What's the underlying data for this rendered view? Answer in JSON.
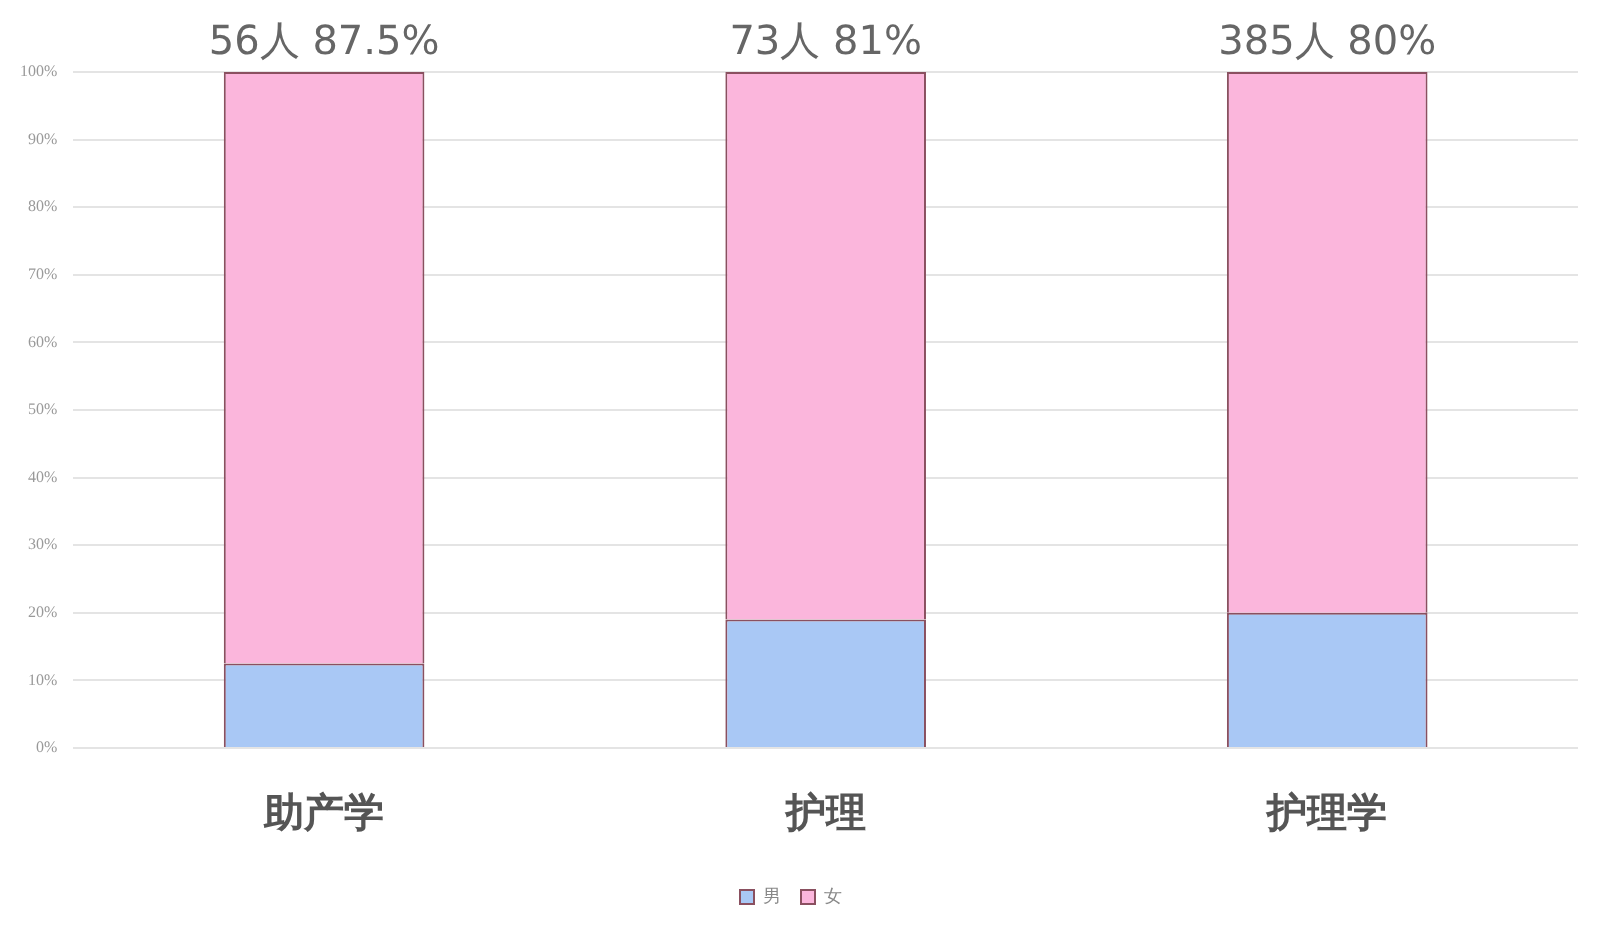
{
  "chart_data": {
    "type": "bar",
    "stacked": true,
    "categories": [
      "助产学",
      "护理",
      "护理学"
    ],
    "series": [
      {
        "name": "男",
        "color": "#a9c8f5",
        "values": [
          12.5,
          19,
          20
        ]
      },
      {
        "name": "女",
        "color": "#fbb6dc",
        "values": [
          87.5,
          81,
          80
        ]
      }
    ],
    "ylim": [
      0,
      100
    ],
    "yticks": [
      {
        "value": 0,
        "label": "0%"
      },
      {
        "value": 10,
        "label": "10%"
      },
      {
        "value": 20,
        "label": "20%"
      },
      {
        "value": 30,
        "label": "30%"
      },
      {
        "value": 40,
        "label": "40%"
      },
      {
        "value": 50,
        "label": "50%"
      },
      {
        "value": 60,
        "label": "60%"
      },
      {
        "value": 70,
        "label": "70%"
      },
      {
        "value": 80,
        "label": "80%"
      },
      {
        "value": 90,
        "label": "90%"
      },
      {
        "value": 100,
        "label": "100%"
      }
    ],
    "grid": "y",
    "legend": "bottom",
    "annotations": [
      {
        "text": "56人 87.5%",
        "x": "助产学",
        "y": 100
      },
      {
        "text": "73人 81%",
        "x": "护理",
        "y": 100
      },
      {
        "text": "385人 80%",
        "x": "护理学",
        "y": 100
      }
    ]
  }
}
